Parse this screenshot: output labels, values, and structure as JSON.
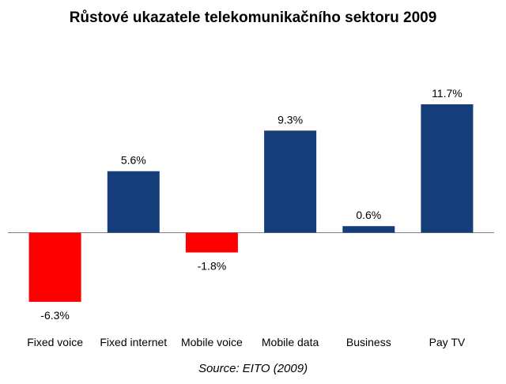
{
  "chart_data": {
    "type": "bar",
    "title": "Růstové ukazatele telekomunikačního sektoru 2009",
    "categories": [
      "Fixed voice",
      "Fixed internet",
      "Mobile voice",
      "Mobile data",
      "Business",
      "Pay TV"
    ],
    "values": [
      -6.3,
      5.6,
      -1.8,
      9.3,
      0.6,
      11.7
    ],
    "value_labels": [
      "-6.3%",
      "5.6%",
      "-1.8%",
      "9.3%",
      "0.6%",
      "11.7%"
    ],
    "xlabel": "",
    "ylabel": "",
    "ylim": [
      -6.3,
      11.7
    ],
    "grid": false,
    "legend": "none",
    "colors": {
      "positive": "#153d7a",
      "negative": "#ff0000",
      "axis": "#808080",
      "text": "#000000"
    },
    "source": "Source: EITO (2009)"
  }
}
